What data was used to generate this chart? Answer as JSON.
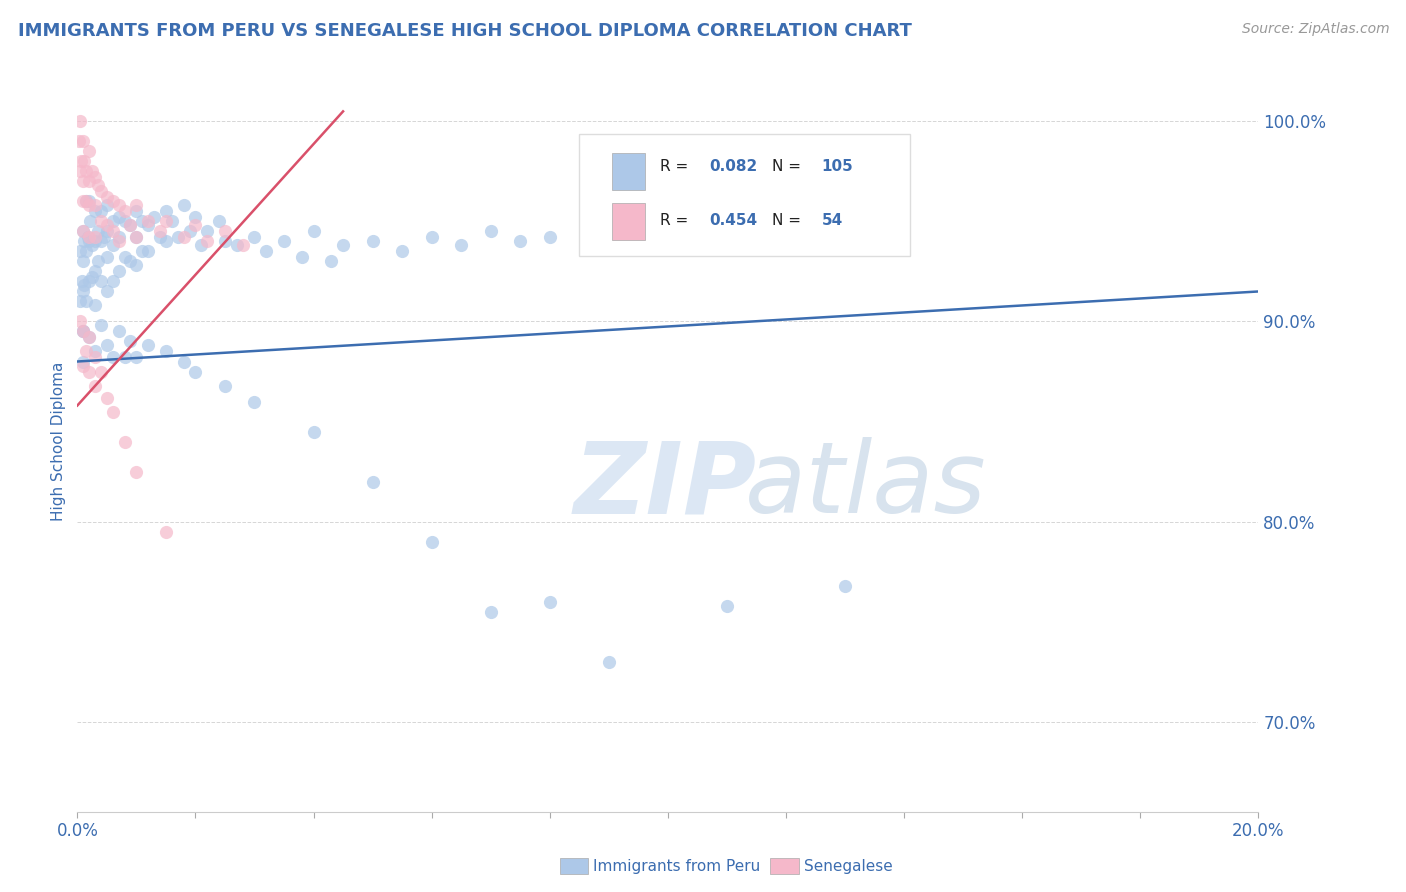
{
  "title": "IMMIGRANTS FROM PERU VS SENEGALESE HIGH SCHOOL DIPLOMA CORRELATION CHART",
  "source_text": "Source: ZipAtlas.com",
  "ylabel": "High School Diploma",
  "xlim": [
    0.0,
    0.2
  ],
  "ylim": [
    0.655,
    1.025
  ],
  "xticks": [
    0.0,
    0.02,
    0.04,
    0.06,
    0.08,
    0.1,
    0.12,
    0.14,
    0.16,
    0.18,
    0.2
  ],
  "yticks": [
    0.7,
    0.8,
    0.9,
    1.0
  ],
  "yticklabels": [
    "70.0%",
    "80.0%",
    "90.0%",
    "100.0%"
  ],
  "blue_color": "#adc8e8",
  "pink_color": "#f5b8ca",
  "blue_line_color": "#3c6db0",
  "pink_line_color": "#d9506a",
  "legend_R1": "0.082",
  "legend_N1": "105",
  "legend_R2": "0.454",
  "legend_N2": "54",
  "legend_label1": "Immigrants from Peru",
  "legend_label2": "Senegalese",
  "watermark_zip": "ZIP",
  "watermark_atlas": "atlas",
  "title_color": "#3c6db0",
  "source_color": "#999999",
  "axis_label_color": "#3c6db0",
  "tick_color": "#3c6db0",
  "blue_scatter_x": [
    0.0005,
    0.0005,
    0.0008,
    0.001,
    0.001,
    0.001,
    0.001,
    0.0012,
    0.0012,
    0.0015,
    0.0015,
    0.0015,
    0.0018,
    0.002,
    0.002,
    0.002,
    0.0022,
    0.0025,
    0.0025,
    0.003,
    0.003,
    0.003,
    0.003,
    0.0035,
    0.0035,
    0.004,
    0.004,
    0.004,
    0.0045,
    0.005,
    0.005,
    0.005,
    0.005,
    0.006,
    0.006,
    0.006,
    0.007,
    0.007,
    0.007,
    0.008,
    0.008,
    0.009,
    0.009,
    0.01,
    0.01,
    0.01,
    0.011,
    0.011,
    0.012,
    0.012,
    0.013,
    0.014,
    0.015,
    0.015,
    0.016,
    0.017,
    0.018,
    0.019,
    0.02,
    0.021,
    0.022,
    0.024,
    0.025,
    0.027,
    0.03,
    0.032,
    0.035,
    0.038,
    0.04,
    0.043,
    0.045,
    0.05,
    0.055,
    0.06,
    0.065,
    0.07,
    0.075,
    0.08,
    0.09,
    0.1,
    0.001,
    0.001,
    0.002,
    0.003,
    0.004,
    0.005,
    0.006,
    0.007,
    0.008,
    0.009,
    0.01,
    0.012,
    0.015,
    0.018,
    0.02,
    0.025,
    0.03,
    0.04,
    0.05,
    0.06,
    0.07,
    0.08,
    0.09,
    0.11,
    0.13
  ],
  "blue_scatter_y": [
    0.935,
    0.91,
    0.92,
    0.945,
    0.93,
    0.915,
    0.895,
    0.94,
    0.918,
    0.96,
    0.935,
    0.91,
    0.942,
    0.96,
    0.94,
    0.92,
    0.95,
    0.938,
    0.922,
    0.955,
    0.94,
    0.925,
    0.908,
    0.945,
    0.93,
    0.955,
    0.94,
    0.92,
    0.942,
    0.958,
    0.945,
    0.932,
    0.915,
    0.95,
    0.938,
    0.92,
    0.952,
    0.942,
    0.925,
    0.95,
    0.932,
    0.948,
    0.93,
    0.955,
    0.942,
    0.928,
    0.95,
    0.935,
    0.948,
    0.935,
    0.952,
    0.942,
    0.955,
    0.94,
    0.95,
    0.942,
    0.958,
    0.945,
    0.952,
    0.938,
    0.945,
    0.95,
    0.94,
    0.938,
    0.942,
    0.935,
    0.94,
    0.932,
    0.945,
    0.93,
    0.938,
    0.94,
    0.935,
    0.942,
    0.938,
    0.945,
    0.94,
    0.942,
    0.938,
    0.942,
    0.895,
    0.88,
    0.892,
    0.885,
    0.898,
    0.888,
    0.882,
    0.895,
    0.882,
    0.89,
    0.882,
    0.888,
    0.885,
    0.88,
    0.875,
    0.868,
    0.86,
    0.845,
    0.82,
    0.79,
    0.755,
    0.76,
    0.73,
    0.758,
    0.768
  ],
  "pink_scatter_x": [
    0.0003,
    0.0005,
    0.0005,
    0.0007,
    0.001,
    0.001,
    0.001,
    0.001,
    0.0012,
    0.0015,
    0.0015,
    0.002,
    0.002,
    0.002,
    0.002,
    0.0025,
    0.003,
    0.003,
    0.003,
    0.0035,
    0.004,
    0.004,
    0.005,
    0.005,
    0.006,
    0.006,
    0.007,
    0.007,
    0.008,
    0.009,
    0.01,
    0.01,
    0.012,
    0.014,
    0.015,
    0.018,
    0.02,
    0.022,
    0.025,
    0.028,
    0.0005,
    0.001,
    0.001,
    0.0015,
    0.002,
    0.002,
    0.003,
    0.003,
    0.004,
    0.005,
    0.006,
    0.008,
    0.01,
    0.015
  ],
  "pink_scatter_y": [
    0.99,
    1.0,
    0.975,
    0.98,
    0.99,
    0.97,
    0.96,
    0.945,
    0.98,
    0.975,
    0.96,
    0.985,
    0.97,
    0.958,
    0.942,
    0.975,
    0.972,
    0.958,
    0.942,
    0.968,
    0.965,
    0.95,
    0.962,
    0.948,
    0.96,
    0.945,
    0.958,
    0.94,
    0.955,
    0.948,
    0.958,
    0.942,
    0.95,
    0.945,
    0.95,
    0.942,
    0.948,
    0.94,
    0.945,
    0.938,
    0.9,
    0.895,
    0.878,
    0.885,
    0.892,
    0.875,
    0.882,
    0.868,
    0.875,
    0.862,
    0.855,
    0.84,
    0.825,
    0.795
  ],
  "blue_trendline_x": [
    0.0,
    0.2
  ],
  "blue_trendline_y": [
    0.88,
    0.915
  ],
  "pink_trendline_x": [
    0.0,
    0.045
  ],
  "pink_trendline_y": [
    0.858,
    1.005
  ]
}
